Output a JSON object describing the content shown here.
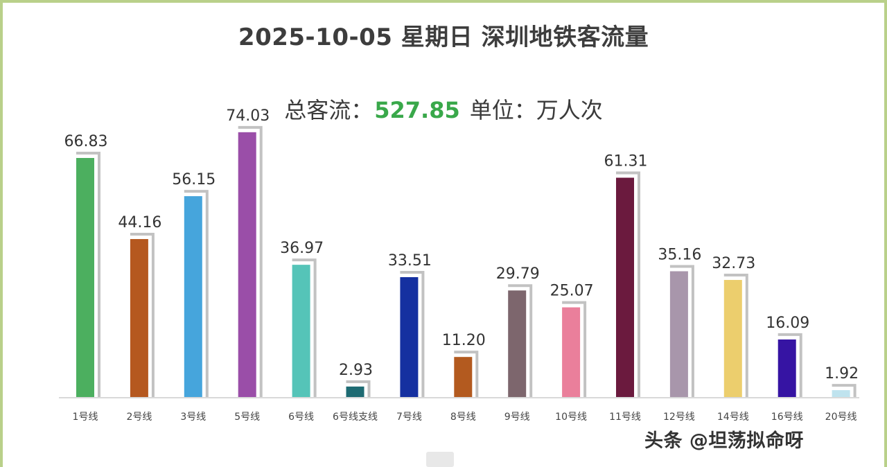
{
  "header": {
    "title": "2025-10-05 星期日  深圳地铁客流量",
    "total_prefix": "总客流：",
    "total_value": "527.85",
    "unit_text": "单位：万人次"
  },
  "watermark": "头条 @坦荡拟命呀",
  "colors": {
    "frame": "#b9d08a",
    "total_value": "#39a84a",
    "bar_shadow": "#c2c2c2",
    "axis": "#d9d9d9"
  },
  "chart_data": {
    "type": "bar",
    "title": "2025-10-05 星期日  深圳地铁客流量",
    "categories": [
      "1号线",
      "2号线",
      "3号线",
      "5号线",
      "6号线",
      "6号线支线",
      "7号线",
      "8号线",
      "9号线",
      "10号线",
      "11号线",
      "12号线",
      "14号线",
      "16号线",
      "20号线"
    ],
    "values": [
      66.83,
      44.16,
      56.15,
      74.03,
      36.97,
      2.93,
      33.51,
      11.2,
      29.79,
      25.07,
      61.31,
      35.16,
      32.73,
      16.09,
      1.92
    ],
    "value_labels": [
      "66.83",
      "44.16",
      "56.15",
      "74.03",
      "36.97",
      "2.93",
      "33.51",
      "11.20",
      "29.79",
      "25.07",
      "61.31",
      "35.16",
      "32.73",
      "16.09",
      "1.92"
    ],
    "bar_colors": [
      "#4caf5f",
      "#b5581f",
      "#46a5dc",
      "#9a4ea8",
      "#55c4b8",
      "#1e6b73",
      "#1530a0",
      "#b35a1f",
      "#7d666d",
      "#ea7f9b",
      "#6b1a3e",
      "#a896ab",
      "#ecce6d",
      "#3614a3",
      "#bfe3ee"
    ],
    "xlabel": "",
    "ylabel": "",
    "ylim": [
      0,
      80
    ],
    "grid": false,
    "legend": "none"
  }
}
